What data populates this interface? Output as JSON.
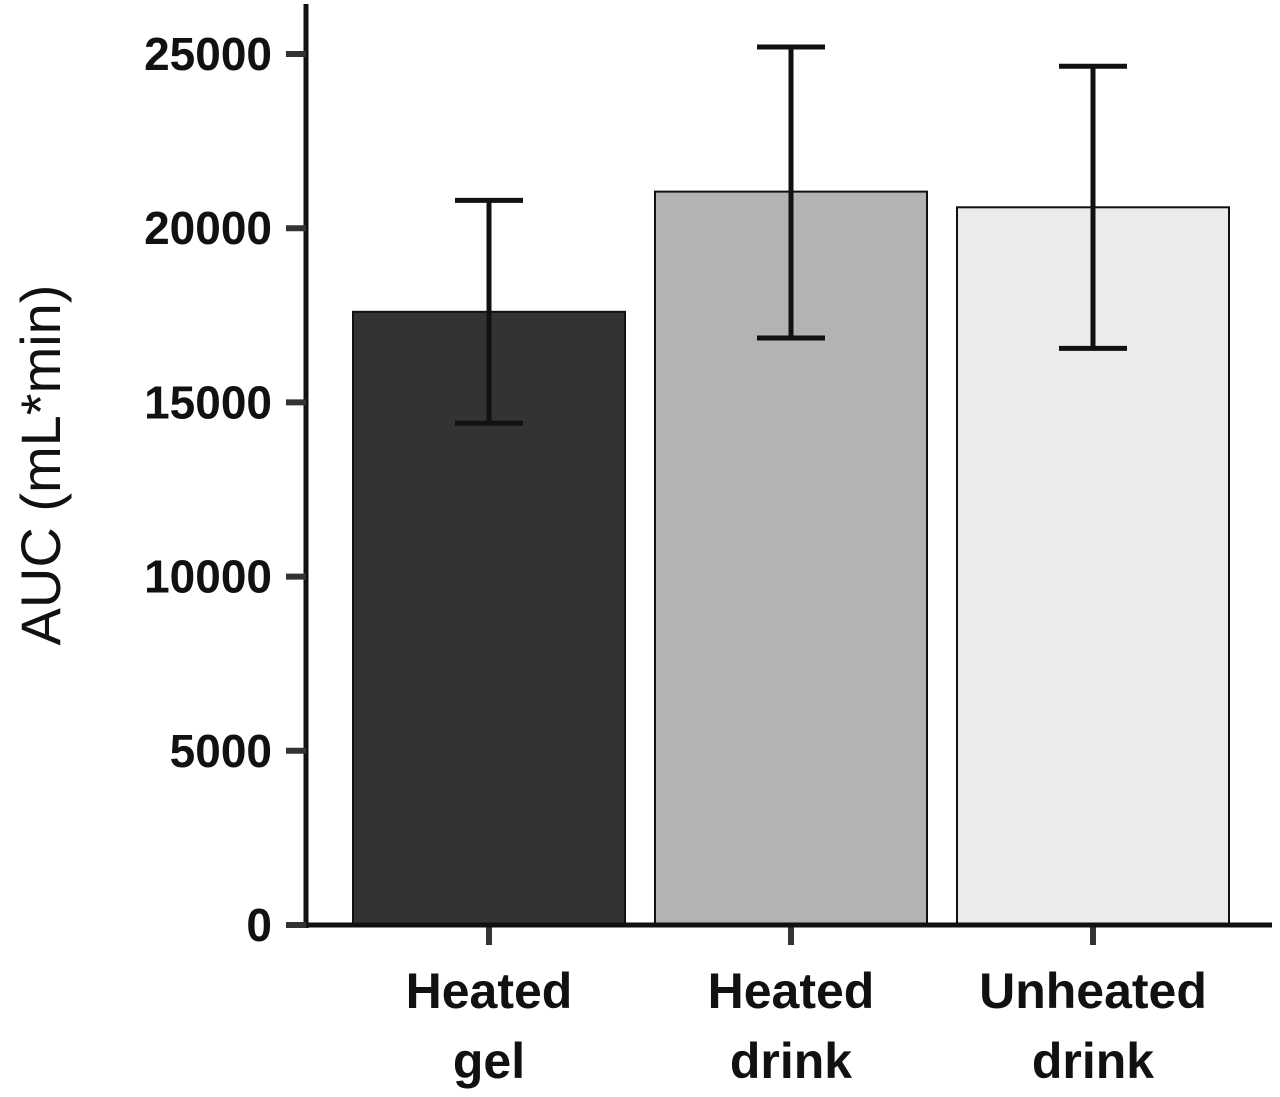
{
  "chart_data": {
    "type": "bar",
    "categories": [
      [
        "Heated",
        "gel"
      ],
      [
        "Heated",
        "drink"
      ],
      [
        "Unheated",
        "drink"
      ]
    ],
    "values": [
      17600,
      21050,
      20600
    ],
    "error_low": [
      14400,
      16850,
      16550
    ],
    "error_high": [
      20800,
      25200,
      24650
    ],
    "bar_colors": [
      "#333333",
      "#b3b3b3",
      "#ebebeb"
    ],
    "ylabel": "AUC (mL*min)",
    "xlabel": "",
    "title": "",
    "ylim": [
      0,
      26500
    ],
    "yticks": [
      0,
      5000,
      10000,
      15000,
      20000,
      25000
    ],
    "ytick_labels": [
      "0",
      "5000",
      "10000",
      "15000",
      "20000",
      "25000"
    ],
    "grid": false,
    "legend": "none"
  }
}
